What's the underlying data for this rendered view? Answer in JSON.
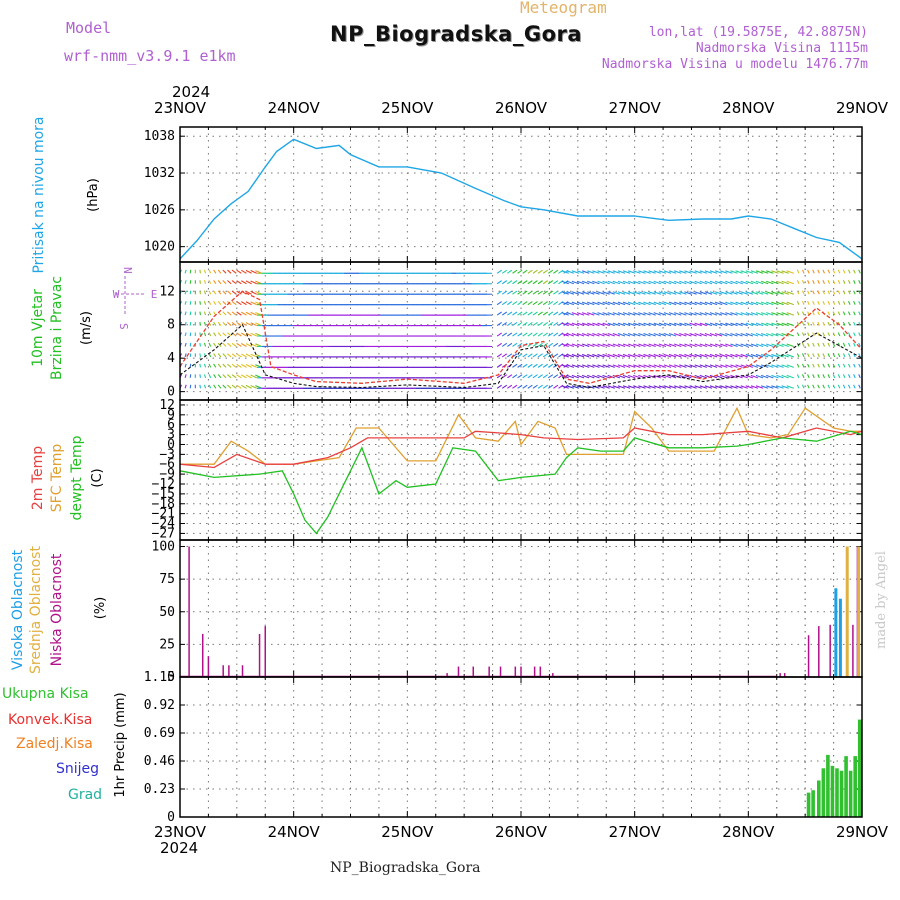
{
  "header": {
    "model_label": "Model",
    "model_name": "wrf-nmm_v3.9.1  e1km",
    "station": "NP_Biogradska_Gora",
    "meteogram_label": "Meteogram",
    "lonlat": "lon,lat (19.5875E, 42.8875N)",
    "elevation": "Nadmorska Visina 1115m",
    "model_elevation": "Nadmorska Visina u modelu 1476.77m",
    "credit": "made by Angel",
    "footer_station": "NP_Biogradska_Gora"
  },
  "colors": {
    "pressure": "#1fa6e6",
    "temp2m": "#e84040",
    "sfc_temp": "#e0a030",
    "dewpt": "#22c022",
    "high_cloud": "#1f9fe6",
    "mid_cloud": "#e0b040",
    "low_cloud": "#b0108a",
    "precip_total": "#30c030",
    "convective": "#e83030",
    "frozen": "#f08020",
    "snow": "#3030d0",
    "grad": "#20b0a0",
    "purple": "#b060d0",
    "wind_speed": "#111111",
    "wind_gust": "#e84030"
  },
  "chart_data": [
    {
      "type": "line",
      "panel": "pressure",
      "x_axis": {
        "year": "2024",
        "ticks": [
          "23NOV",
          "24NOV",
          "25NOV",
          "26NOV",
          "27NOV",
          "28NOV",
          "29NOV"
        ]
      },
      "ylabel_name": "Pritisak na nivou mora",
      "ylabel_unit": "(hPa)",
      "yticks": [
        1020,
        1026,
        1032,
        1038
      ],
      "ylim": [
        1017.5,
        1039.5
      ],
      "series": [
        {
          "name": "Pritisak na nivou mora",
          "x": [
            0,
            0.15,
            0.3,
            0.45,
            0.6,
            0.75,
            0.85,
            1,
            1.2,
            1.4,
            1.5,
            1.75,
            2,
            2.3,
            2.6,
            2.85,
            3,
            3.2,
            3.5,
            3.7,
            4,
            4.3,
            4.6,
            4.85,
            5,
            5.2,
            5.4,
            5.6,
            5.8,
            6
          ],
          "y": [
            1018,
            1021,
            1024.5,
            1027,
            1029,
            1033,
            1035.5,
            1037.5,
            1036,
            1036.5,
            1035,
            1033,
            1033,
            1032,
            1029.5,
            1027.5,
            1026.5,
            1026,
            1025,
            1025,
            1025,
            1024.3,
            1024.5,
            1024.5,
            1025,
            1024.5,
            1023,
            1021.5,
            1020.7,
            1018
          ]
        }
      ]
    },
    {
      "type": "line",
      "panel": "wind",
      "ylabel_name": "10m Vjetar",
      "ylabel_sub": "Brzina i Pravac",
      "ylabel_unit": "(m/s)",
      "compass": {
        "n": "N",
        "s": "S",
        "e": "E",
        "w": "W"
      },
      "yticks": [
        0,
        4,
        8,
        12
      ],
      "ylim": [
        -1,
        15.5
      ],
      "series": [
        {
          "name": "speed",
          "x": [
            0,
            0.3,
            0.55,
            0.75,
            1,
            1.2,
            1.6,
            2,
            2.5,
            2.8,
            3,
            3.2,
            3.4,
            3.6,
            4,
            4.3,
            4.6,
            5,
            5.2,
            5.6,
            6
          ],
          "y": [
            2,
            5,
            8,
            2,
            1,
            0.6,
            0.5,
            0.8,
            0.5,
            1,
            5,
            5.5,
            1,
            0.5,
            1.5,
            2,
            1.2,
            2,
            3.5,
            7,
            4
          ]
        },
        {
          "name": "gust",
          "x": [
            0,
            0.3,
            0.55,
            0.7,
            0.8,
            1,
            1.2,
            1.6,
            2,
            2.5,
            2.8,
            3,
            3.2,
            3.4,
            3.6,
            4,
            4.3,
            4.6,
            5,
            5.2,
            5.6,
            5.8,
            6
          ],
          "y": [
            3,
            9,
            12,
            11,
            3,
            2,
            1.2,
            1,
            1.5,
            1,
            2,
            5.5,
            6,
            1.5,
            1,
            2.5,
            2.5,
            1.5,
            3,
            5,
            10,
            8,
            5
          ]
        }
      ]
    },
    {
      "type": "line",
      "panel": "temperature",
      "labels": {
        "temp2m": "2m Temp",
        "sfc": "SFC Temp",
        "dewpt": "dewpt Temp",
        "unit": "(C)"
      },
      "yticks": [
        12,
        9,
        6,
        3,
        0,
        -3,
        -6,
        -9,
        -12,
        -15,
        -18,
        -21,
        -24,
        -27
      ],
      "ylim": [
        -29,
        13.5
      ],
      "series": [
        {
          "name": "2m Temp",
          "x": [
            0,
            0.3,
            0.5,
            0.75,
            1,
            1.3,
            1.5,
            1.65,
            1.8,
            2.2,
            2.5,
            2.6,
            2.8,
            3,
            3.2,
            3.5,
            3.9,
            4,
            4.3,
            4.6,
            5,
            5.3,
            5.6,
            5.9,
            6
          ],
          "y": [
            -6,
            -7,
            -3,
            -6,
            -6,
            -4,
            -1,
            2,
            2,
            2,
            2,
            4,
            3.5,
            3,
            2,
            1.5,
            2,
            5,
            3,
            3,
            4,
            2,
            5,
            3,
            4
          ]
        },
        {
          "name": "SFC Temp",
          "x": [
            0,
            0.3,
            0.45,
            0.6,
            0.75,
            1,
            1.2,
            1.4,
            1.55,
            1.75,
            2,
            2.25,
            2.45,
            2.6,
            2.8,
            2.95,
            3,
            3.15,
            3.3,
            3.4,
            3.6,
            3.9,
            4,
            4.15,
            4.3,
            4.5,
            4.7,
            4.9,
            5,
            5.2,
            5.35,
            5.5,
            5.75,
            5.9,
            6
          ],
          "y": [
            -6,
            -6,
            1,
            -2,
            -6,
            -6,
            -5,
            -4,
            5,
            5,
            -5,
            -5,
            9,
            2,
            1,
            7,
            0,
            7,
            5,
            -3,
            -3,
            -3,
            10,
            5,
            -2,
            -2,
            -2,
            11,
            3,
            2,
            3,
            11,
            5,
            4,
            4
          ]
        },
        {
          "name": "dewpt Temp",
          "x": [
            0,
            0.3,
            0.7,
            0.9,
            1,
            1.1,
            1.2,
            1.3,
            1.5,
            1.6,
            1.75,
            1.9,
            2,
            2.25,
            2.4,
            2.6,
            2.8,
            3,
            3.3,
            3.4,
            3.5,
            3.7,
            3.9,
            4,
            4.3,
            4.6,
            4.9,
            5,
            5.3,
            5.6,
            5.9,
            6
          ],
          "y": [
            -8,
            -10,
            -9,
            -8,
            -15,
            -23,
            -27,
            -22,
            -8,
            -1,
            -15,
            -11,
            -13,
            -12,
            -1,
            -2,
            -11,
            -10,
            -9,
            -4,
            -1,
            -2,
            -2,
            2,
            -1,
            -1,
            -0.5,
            0,
            2,
            1,
            4,
            3
          ]
        }
      ]
    },
    {
      "type": "bar",
      "panel": "cloud",
      "labels": {
        "high": "Visoka Oblacnost",
        "mid": "Srednja Oblacnost",
        "low": "Niska Oblacnost",
        "unit": "(%)"
      },
      "yticks": [
        0,
        25,
        50,
        75,
        100
      ],
      "ylim": [
        0,
        105
      ],
      "series": [
        {
          "name": "Niska Oblacnost",
          "x": [
            0.08,
            0.2,
            0.25,
            0.38,
            0.43,
            0.55,
            0.7,
            0.75,
            2.35,
            2.45,
            2.58,
            2.72,
            2.82,
            2.95,
            3.0,
            3.12,
            3.17,
            3.28,
            5.28,
            5.32,
            5.53,
            5.62,
            5.72,
            5.92,
            5.96
          ],
          "y": [
            100,
            33,
            16,
            9,
            9,
            9,
            33,
            39,
            3,
            8,
            8,
            8,
            8,
            8,
            8,
            8,
            8,
            3,
            3,
            3,
            32,
            39,
            40,
            40,
            100
          ]
        },
        {
          "name": "Srednja Oblacnost",
          "x": [
            5.87,
            5.97
          ],
          "y": [
            100,
            100
          ]
        },
        {
          "name": "Visoka Oblacnost",
          "x": [
            5.77,
            5.81
          ],
          "y": [
            68,
            60
          ]
        }
      ]
    },
    {
      "type": "bar",
      "panel": "precip",
      "labels": {
        "total": "Ukupna Kisa",
        "conv": "Konvek.Kisa",
        "frozen": "Zaledj.Kisa",
        "snow": "Snijeg",
        "grad": "Grad",
        "ylabel": "1hr Precip (mm)"
      },
      "yticks": [
        0,
        0.23,
        0.46,
        0.69,
        0.92,
        1.15
      ],
      "ylim": [
        0,
        1.15
      ],
      "x_axis": {
        "year": "2024",
        "ticks": [
          "23NOV",
          "24NOV",
          "25NOV",
          "26NOV",
          "27NOV",
          "28NOV",
          "29NOV"
        ]
      },
      "series": [
        {
          "name": "Ukupna Kisa",
          "x": [
            5.53,
            5.57,
            5.62,
            5.66,
            5.7,
            5.74,
            5.78,
            5.82,
            5.86,
            5.9,
            5.94,
            5.98
          ],
          "y": [
            0.2,
            0.22,
            0.3,
            0.4,
            0.51,
            0.42,
            0.4,
            0.38,
            0.5,
            0.38,
            0.5,
            0.8
          ]
        }
      ]
    }
  ]
}
